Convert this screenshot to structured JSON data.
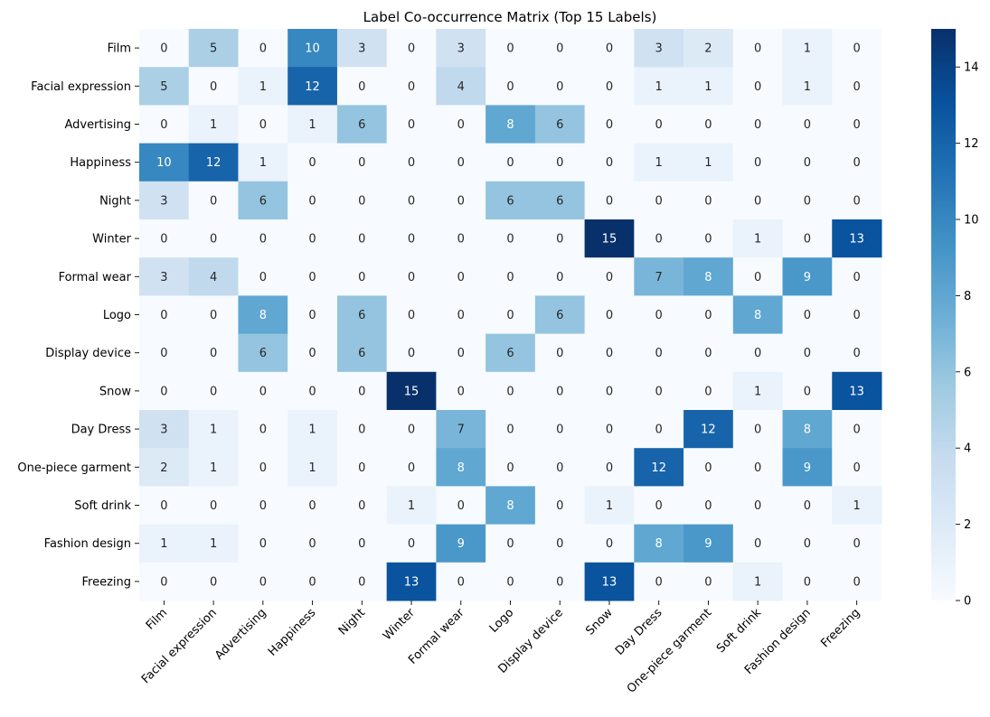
{
  "chart_data": {
    "type": "heatmap",
    "title": "Label Co-occurrence Matrix (Top 15 Labels)",
    "xlabel": "",
    "ylabel": "",
    "labels": [
      "Film",
      "Facial expression",
      "Advertising",
      "Happiness",
      "Night",
      "Winter",
      "Formal wear",
      "Logo",
      "Display device",
      "Snow",
      "Day Dress",
      "One-piece garment",
      "Soft drink",
      "Fashion design",
      "Freezing"
    ],
    "matrix": [
      [
        0,
        5,
        0,
        10,
        3,
        0,
        3,
        0,
        0,
        0,
        3,
        2,
        0,
        1,
        0
      ],
      [
        5,
        0,
        1,
        12,
        0,
        0,
        4,
        0,
        0,
        0,
        1,
        1,
        0,
        1,
        0
      ],
      [
        0,
        1,
        0,
        1,
        6,
        0,
        0,
        8,
        6,
        0,
        0,
        0,
        0,
        0,
        0
      ],
      [
        10,
        12,
        1,
        0,
        0,
        0,
        0,
        0,
        0,
        0,
        1,
        1,
        0,
        0,
        0
      ],
      [
        3,
        0,
        6,
        0,
        0,
        0,
        0,
        6,
        6,
        0,
        0,
        0,
        0,
        0,
        0
      ],
      [
        0,
        0,
        0,
        0,
        0,
        0,
        0,
        0,
        0,
        15,
        0,
        0,
        1,
        0,
        13
      ],
      [
        3,
        4,
        0,
        0,
        0,
        0,
        0,
        0,
        0,
        0,
        7,
        8,
        0,
        9,
        0
      ],
      [
        0,
        0,
        8,
        0,
        6,
        0,
        0,
        0,
        6,
        0,
        0,
        0,
        8,
        0,
        0
      ],
      [
        0,
        0,
        6,
        0,
        6,
        0,
        0,
        6,
        0,
        0,
        0,
        0,
        0,
        0,
        0
      ],
      [
        0,
        0,
        0,
        0,
        0,
        15,
        0,
        0,
        0,
        0,
        0,
        0,
        1,
        0,
        13
      ],
      [
        3,
        1,
        0,
        1,
        0,
        0,
        7,
        0,
        0,
        0,
        0,
        12,
        0,
        8,
        0
      ],
      [
        2,
        1,
        0,
        1,
        0,
        0,
        8,
        0,
        0,
        0,
        12,
        0,
        0,
        9,
        0
      ],
      [
        0,
        0,
        0,
        0,
        0,
        1,
        0,
        8,
        0,
        1,
        0,
        0,
        0,
        0,
        1
      ],
      [
        1,
        1,
        0,
        0,
        0,
        0,
        9,
        0,
        0,
        0,
        8,
        9,
        0,
        0,
        0
      ],
      [
        0,
        0,
        0,
        0,
        0,
        13,
        0,
        0,
        0,
        13,
        0,
        0,
        1,
        0,
        0
      ]
    ],
    "vmin": 0,
    "vmax": 15,
    "colormap": "Blues",
    "colorbar_ticks": [
      0,
      2,
      4,
      6,
      8,
      10,
      12,
      14
    ],
    "annotate": true
  }
}
